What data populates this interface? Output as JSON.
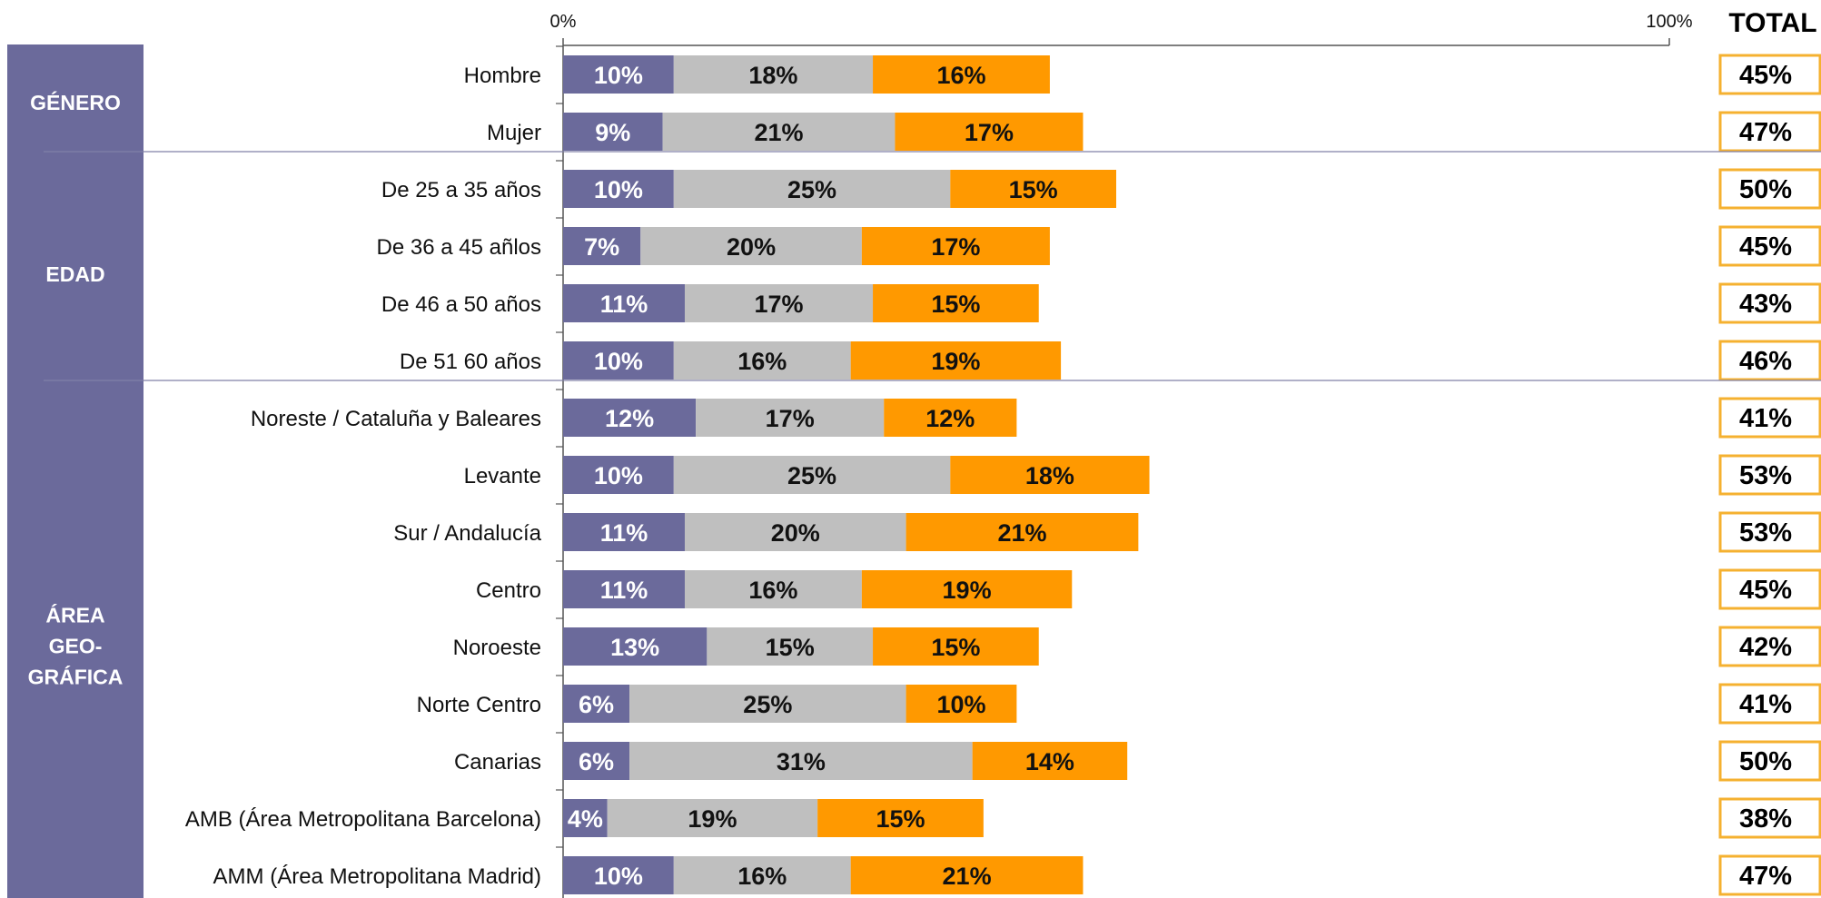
{
  "chart_data": {
    "type": "bar",
    "orientation": "horizontal",
    "stacked": true,
    "xlim": [
      0,
      100
    ],
    "axis_ticks": [
      "0%",
      "100%"
    ],
    "total_header": "TOTAL",
    "series_colors": [
      "#6b6a9b",
      "#bfbfbf",
      "#ff9900"
    ],
    "segment_text_colors": [
      "#ffffff",
      "#111111",
      "#111111"
    ],
    "groups": [
      {
        "name": "GÉNERO",
        "name_lines": [
          "GÉNERO"
        ],
        "rows": [
          {
            "label": "Hombre",
            "values": [
              10,
              18,
              16
            ],
            "value_labels": [
              "10%",
              "18%",
              "16%"
            ],
            "total": "45%"
          },
          {
            "label": "Mujer",
            "values": [
              9,
              21,
              17
            ],
            "value_labels": [
              "9%",
              "21%",
              "17%"
            ],
            "total": "47%"
          }
        ]
      },
      {
        "name": "EDAD",
        "name_lines": [
          "EDAD"
        ],
        "rows": [
          {
            "label": "De 25 a 35 años",
            "values": [
              10,
              25,
              15
            ],
            "value_labels": [
              "10%",
              "25%",
              "15%"
            ],
            "total": "50%"
          },
          {
            "label": "De 36 a 45 añlos",
            "values": [
              7,
              20,
              17
            ],
            "value_labels": [
              "7%",
              "20%",
              "17%"
            ],
            "total": "45%"
          },
          {
            "label": "De 46 a 50 años",
            "values": [
              11,
              17,
              15
            ],
            "value_labels": [
              "11%",
              "17%",
              "15%"
            ],
            "total": "43%"
          },
          {
            "label": "De 51 60 años",
            "values": [
              10,
              16,
              19
            ],
            "value_labels": [
              "10%",
              "16%",
              "19%"
            ],
            "total": "46%"
          }
        ]
      },
      {
        "name": "ÁREA GEO-GRÁFICA",
        "name_lines": [
          "ÁREA",
          "GEO-",
          "GRÁFICA"
        ],
        "rows": [
          {
            "label": "Noreste / Cataluña y Baleares",
            "values": [
              12,
              17,
              12
            ],
            "value_labels": [
              "12%",
              "17%",
              "12%"
            ],
            "total": "41%"
          },
          {
            "label": "Levante",
            "values": [
              10,
              25,
              18
            ],
            "value_labels": [
              "10%",
              "25%",
              "18%"
            ],
            "total": "53%"
          },
          {
            "label": "Sur / Andalucía",
            "values": [
              11,
              20,
              21
            ],
            "value_labels": [
              "11%",
              "20%",
              "21%"
            ],
            "total": "53%"
          },
          {
            "label": "Centro",
            "values": [
              11,
              16,
              19
            ],
            "value_labels": [
              "11%",
              "16%",
              "19%"
            ],
            "total": "45%"
          },
          {
            "label": "Noroeste",
            "values": [
              13,
              15,
              15
            ],
            "value_labels": [
              "13%",
              "15%",
              "15%"
            ],
            "total": "42%"
          },
          {
            "label": "Norte Centro",
            "values": [
              6,
              25,
              10
            ],
            "value_labels": [
              "6%",
              "25%",
              "10%"
            ],
            "total": "41%"
          },
          {
            "label": "Canarias",
            "values": [
              6,
              31,
              14
            ],
            "value_labels": [
              "6%",
              "31%",
              "14%"
            ],
            "total": "50%"
          },
          {
            "label": "AMB (Área Metropolitana Barcelona)",
            "values": [
              4,
              19,
              15
            ],
            "value_labels": [
              "4%",
              "19%",
              "15%"
            ],
            "total": "38%"
          },
          {
            "label": "AMM (Área Metropolitana Madrid)",
            "values": [
              10,
              16,
              21
            ],
            "value_labels": [
              "10%",
              "16%",
              "21%"
            ],
            "total": "47%"
          }
        ]
      }
    ]
  }
}
